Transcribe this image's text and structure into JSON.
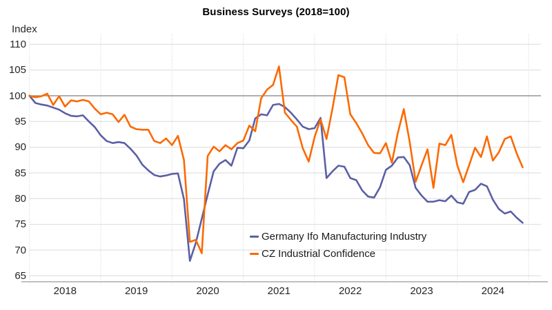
{
  "title": "Business Surveys (2018=100)",
  "y_axis_label": "Index",
  "chart_data": {
    "type": "line",
    "title": "Business Surveys (2018=100)",
    "ylabel": "Index",
    "xlabel": "",
    "frequency": "monthly",
    "x_start": "2018-01",
    "x_end": "2024-12",
    "x_year_labels": [
      "2018",
      "2019",
      "2020",
      "2021",
      "2022",
      "2023",
      "2024"
    ],
    "y_ticks": [
      110,
      105,
      100,
      95,
      90,
      85,
      80,
      75,
      70,
      65
    ],
    "ylim": [
      65,
      110
    ],
    "baseline": 100,
    "grid": {
      "horizontal": true,
      "vertical": "dotted-year-boundaries"
    },
    "legend_position": "inside-bottom-center",
    "baseline_color": "#7F7F7F",
    "gridline_color": "#D9D9D9",
    "series": [
      {
        "name": "Germany Ifo Manufacturing Industry",
        "color": "#5A5FA5",
        "values": [
          100.0,
          98.6,
          98.3,
          98.1,
          97.7,
          97.3,
          96.6,
          96.1,
          96.0,
          96.2,
          95.0,
          93.9,
          92.3,
          91.2,
          90.8,
          91.0,
          90.8,
          89.7,
          88.4,
          86.6,
          85.5,
          84.6,
          84.3,
          84.5,
          84.8,
          84.9,
          79.9,
          67.9,
          71.4,
          76.1,
          80.8,
          85.3,
          86.8,
          87.5,
          86.4,
          89.9,
          89.8,
          91.3,
          95.6,
          96.4,
          96.2,
          98.2,
          98.4,
          97.8,
          96.7,
          95.4,
          94.0,
          93.5,
          93.7,
          95.7,
          84.0,
          85.3,
          86.4,
          86.2,
          84.0,
          83.6,
          81.6,
          80.4,
          80.2,
          82.2,
          85.6,
          86.4,
          88.0,
          88.1,
          86.5,
          82.1,
          80.6,
          79.4,
          79.4,
          79.7,
          79.5,
          80.6,
          79.3,
          79.0,
          81.3,
          81.7,
          82.9,
          82.4,
          79.8,
          78.0,
          77.1,
          77.5,
          76.3,
          75.3
        ]
      },
      {
        "name": "CZ Industrial Confidence",
        "color": "#FB6900",
        "values": [
          100.0,
          99.7,
          99.9,
          100.4,
          98.2,
          99.9,
          97.9,
          99.1,
          98.9,
          99.2,
          98.9,
          97.5,
          96.4,
          96.7,
          96.4,
          94.9,
          96.3,
          94.0,
          93.5,
          93.4,
          93.4,
          91.2,
          90.8,
          91.7,
          90.4,
          92.2,
          87.5,
          71.6,
          72.0,
          69.4,
          88.3,
          90.1,
          89.2,
          90.4,
          89.6,
          90.8,
          91.3,
          94.2,
          93.1,
          99.5,
          101.2,
          102.1,
          105.7,
          96.7,
          95.3,
          94.0,
          89.8,
          87.2,
          92.0,
          95.4,
          91.6,
          97.5,
          104.0,
          103.6,
          96.4,
          94.7,
          92.7,
          90.4,
          88.9,
          88.8,
          90.8,
          87.0,
          92.8,
          97.4,
          91.0,
          83.3,
          86.5,
          89.6,
          82.1,
          90.7,
          90.4,
          92.4,
          86.5,
          83.2,
          86.5,
          89.9,
          88.1,
          92.1,
          87.4,
          89.0,
          91.6,
          92.1,
          88.8,
          86.1
        ]
      }
    ]
  }
}
